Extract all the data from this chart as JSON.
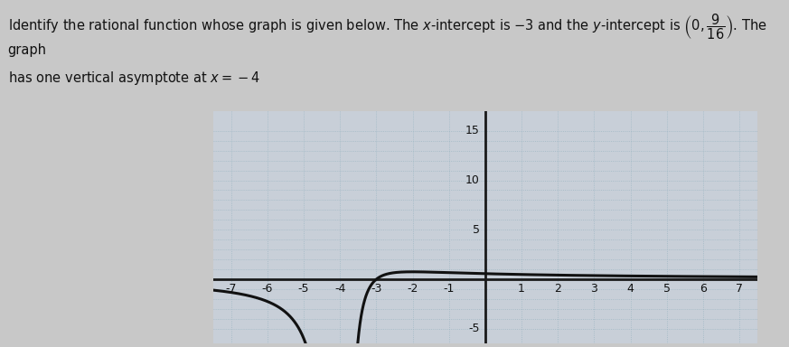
{
  "background_color": "#c8c8c8",
  "plot_bg_color": "#c8cfd8",
  "grid_color_major": "#8aaabb",
  "grid_color_minor": "#9ab5c2",
  "axis_color": "#1a1a1a",
  "curve_color": "#111111",
  "text_color": "#111111",
  "xlim": [
    -7.5,
    7.5
  ],
  "ylim": [
    -6.5,
    17
  ],
  "xticks": [
    -7,
    -6,
    -5,
    -4,
    -3,
    -2,
    -1,
    1,
    2,
    3,
    4,
    5,
    6,
    7
  ],
  "yticks": [
    -5,
    5,
    10,
    15
  ],
  "vertical_asymptote": -4,
  "func_a": 3,
  "func_zero": -3,
  "func_pole": -4,
  "title_line1": "Identify the rational function whose graph is given below. The $x$-intercept is $-3$ and the $y$-intercept is $\\left(0, \\dfrac{9}{16}\\right)$. The graph",
  "title_line2": "has one vertical asymptote at $x=-4$",
  "title_fontsize": 10.5
}
